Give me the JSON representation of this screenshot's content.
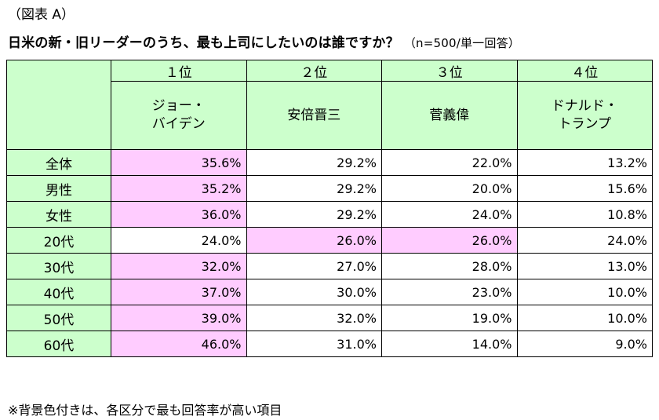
{
  "figure_label": "（図表 A）",
  "title": "日米の新・旧リーダーのうち、最も上司にしたいのは誰ですか？",
  "subtitle": "（n=500/単一回答）",
  "footnote": "※背景色付きは、各区分で最も回答率が高い項目",
  "colors": {
    "header_bg": "#ccffcc",
    "highlight_bg": "#ffccff",
    "cell_bg": "#ffffff"
  },
  "chart_data": {
    "type": "table",
    "columns": [
      {
        "rank": "１位",
        "name_lines": [
          "ジョー・",
          "バイデン"
        ]
      },
      {
        "rank": "２位",
        "name_lines": [
          "安倍晋三"
        ]
      },
      {
        "rank": "３位",
        "name_lines": [
          "菅義偉"
        ]
      },
      {
        "rank": "４位",
        "name_lines": [
          "ドナルド・",
          "トランプ"
        ]
      }
    ],
    "rows": [
      {
        "label": "全体",
        "values": [
          "35.6%",
          "29.2%",
          "22.0%",
          "13.2%"
        ],
        "highlight": [
          0
        ]
      },
      {
        "label": "男性",
        "values": [
          "35.2%",
          "29.2%",
          "20.0%",
          "15.6%"
        ],
        "highlight": [
          0
        ]
      },
      {
        "label": "女性",
        "values": [
          "36.0%",
          "29.2%",
          "24.0%",
          "10.8%"
        ],
        "highlight": [
          0
        ]
      },
      {
        "label": "20代",
        "values": [
          "24.0%",
          "26.0%",
          "26.0%",
          "24.0%"
        ],
        "highlight": [
          1,
          2
        ]
      },
      {
        "label": "30代",
        "values": [
          "32.0%",
          "27.0%",
          "28.0%",
          "13.0%"
        ],
        "highlight": [
          0
        ]
      },
      {
        "label": "40代",
        "values": [
          "37.0%",
          "30.0%",
          "23.0%",
          "10.0%"
        ],
        "highlight": [
          0
        ]
      },
      {
        "label": "50代",
        "values": [
          "39.0%",
          "32.0%",
          "19.0%",
          "10.0%"
        ],
        "highlight": [
          0
        ]
      },
      {
        "label": "60代",
        "values": [
          "46.0%",
          "31.0%",
          "14.0%",
          "9.0%"
        ],
        "highlight": [
          0
        ]
      }
    ]
  }
}
